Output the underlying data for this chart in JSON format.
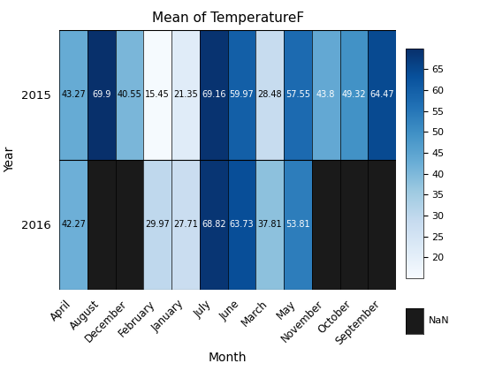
{
  "title": "Mean of TemperatureF",
  "xlabel": "Month",
  "ylabel": "Year",
  "months": [
    "April",
    "August",
    "December",
    "February",
    "January",
    "July",
    "June",
    "March",
    "May",
    "November",
    "October",
    "September"
  ],
  "years": [
    "2015",
    "2016"
  ],
  "values": [
    [
      43.27,
      69.9,
      40.55,
      15.45,
      21.35,
      69.16,
      59.97,
      28.48,
      57.55,
      43.8,
      49.32,
      64.47
    ],
    [
      42.27,
      null,
      null,
      29.97,
      27.71,
      68.82,
      63.73,
      37.81,
      53.81,
      null,
      null,
      null
    ]
  ],
  "vmin": 15,
  "vmax": 70,
  "colorbar_ticks": [
    20,
    25,
    30,
    35,
    40,
    45,
    50,
    55,
    60,
    65
  ],
  "nan_color": "#1a1a1a",
  "text_color_light": "#ffffff",
  "text_color_dark": "#000000",
  "cmap": "Blues",
  "figsize": [
    5.6,
    4.2
  ],
  "dpi": 100
}
